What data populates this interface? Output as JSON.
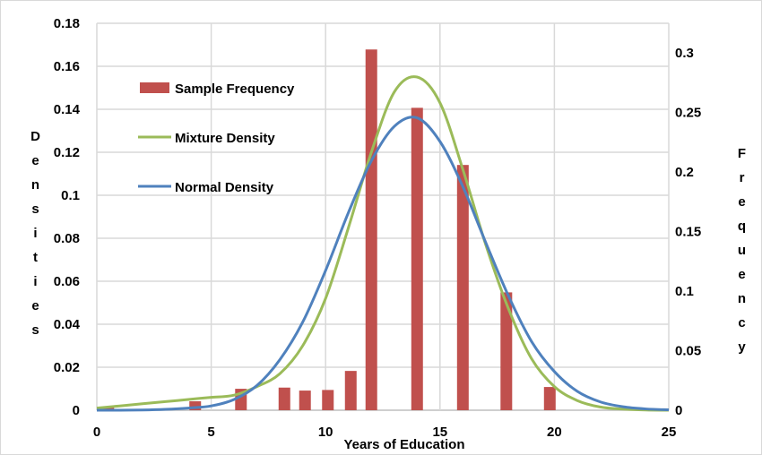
{
  "chart_data": {
    "type": "bar+line",
    "xlabel": "Years of Education",
    "ylabel_left": "Densities",
    "ylabel_right": "Frequency",
    "xlim": [
      0,
      25
    ],
    "ylim_left": [
      0,
      0.18
    ],
    "ylim_right": [
      0,
      0.325
    ],
    "x_ticks": [
      "0",
      "5",
      "10",
      "15",
      "20",
      "25"
    ],
    "y_left_ticks": [
      "0",
      "0.02",
      "0.04",
      "0.06",
      "0.08",
      "0.1",
      "0.12",
      "0.14",
      "0.16",
      "0.18"
    ],
    "y_right_ticks": [
      "0",
      "0.05",
      "0.1",
      "0.15",
      "0.2",
      "0.25",
      "0.3"
    ],
    "grid": true,
    "legend_placement": "top-left",
    "series": [
      {
        "name": "Sample Frequency",
        "kind": "bar",
        "axis": "right",
        "color": "#c0504d",
        "x": [
          0.5,
          4.3,
          6.3,
          8.2,
          9.1,
          10.1,
          11.1,
          12,
          14,
          16,
          17.9,
          19.8
        ],
        "values": [
          0.003,
          0.0075,
          0.018,
          0.019,
          0.0165,
          0.017,
          0.033,
          0.303,
          0.254,
          0.206,
          0.099,
          0.0195
        ]
      },
      {
        "name": "Mixture Density",
        "kind": "line",
        "axis": "left",
        "color": "#9bbb59",
        "x": [
          0,
          1,
          2,
          3,
          4,
          5,
          6,
          7,
          8,
          9,
          10,
          11,
          12,
          13,
          14,
          15,
          16,
          17,
          18,
          19,
          20,
          21,
          22,
          23,
          24,
          25
        ],
        "values": [
          0.001,
          0.002,
          0.003,
          0.004,
          0.005,
          0.006,
          0.007,
          0.011,
          0.017,
          0.03,
          0.052,
          0.085,
          0.12,
          0.148,
          0.155,
          0.143,
          0.112,
          0.077,
          0.047,
          0.024,
          0.011,
          0.0045,
          0.0015,
          0.0005,
          0.0001,
          0
        ]
      },
      {
        "name": "Normal Density",
        "kind": "line",
        "axis": "left",
        "color": "#4f81bd",
        "x": [
          0,
          1,
          2,
          3,
          4,
          5,
          6,
          7,
          8,
          9,
          10,
          11,
          12,
          13,
          14,
          15,
          16,
          17,
          18,
          19,
          20,
          21,
          22,
          23,
          24,
          25
        ],
        "values": [
          0,
          0,
          0.0001,
          0.0004,
          0.001,
          0.002,
          0.005,
          0.0115,
          0.0235,
          0.041,
          0.065,
          0.092,
          0.116,
          0.132,
          0.136,
          0.125,
          0.104,
          0.078,
          0.053,
          0.032,
          0.018,
          0.0088,
          0.0039,
          0.0016,
          0.0006,
          0.0002
        ]
      }
    ]
  }
}
